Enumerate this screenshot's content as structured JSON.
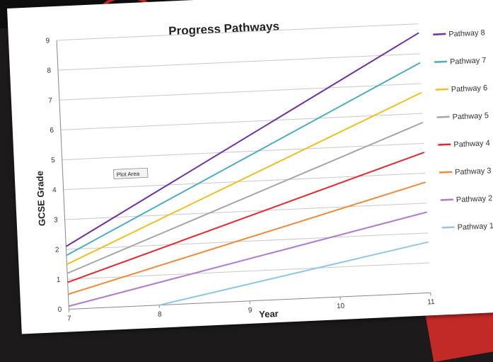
{
  "chart_data": {
    "type": "line",
    "title": "Progress Pathways",
    "xlabel": "Year",
    "ylabel": "GCSE Grade",
    "xlim": [
      7,
      11
    ],
    "ylim": [
      0,
      9
    ],
    "x_ticks": [
      "7",
      "8",
      "9",
      "10",
      "11"
    ],
    "y_ticks": [
      "0",
      "1",
      "2",
      "3",
      "4",
      "5",
      "6",
      "7",
      "8",
      "9"
    ],
    "grid": "horizontal",
    "legend_position": "right",
    "tooltip": "Plot Area",
    "series": [
      {
        "name": "Pathway 8",
        "color": "#7030a0",
        "x": [
          7,
          11
        ],
        "y": [
          2.1,
          8.7
        ]
      },
      {
        "name": "Pathway 7",
        "color": "#4bacc6",
        "x": [
          7,
          11
        ],
        "y": [
          1.8,
          7.7
        ]
      },
      {
        "name": "Pathway 6",
        "color": "#f0c020",
        "x": [
          7,
          11
        ],
        "y": [
          1.5,
          6.7
        ]
      },
      {
        "name": "Pathway 5",
        "color": "#a6a6a6",
        "x": [
          7,
          11
        ],
        "y": [
          1.2,
          5.7
        ]
      },
      {
        "name": "Pathway 4",
        "color": "#e8282e",
        "x": [
          7,
          11
        ],
        "y": [
          0.9,
          4.7
        ]
      },
      {
        "name": "Pathway 3",
        "color": "#f08a3c",
        "x": [
          7,
          11
        ],
        "y": [
          0.5,
          3.7
        ]
      },
      {
        "name": "Pathway 2",
        "color": "#b07ad0",
        "x": [
          7,
          11
        ],
        "y": [
          0.1,
          2.7
        ]
      },
      {
        "name": "Pathway 1",
        "color": "#8dc8e8",
        "x": [
          8,
          11
        ],
        "y": [
          0.0,
          1.7
        ]
      }
    ]
  }
}
